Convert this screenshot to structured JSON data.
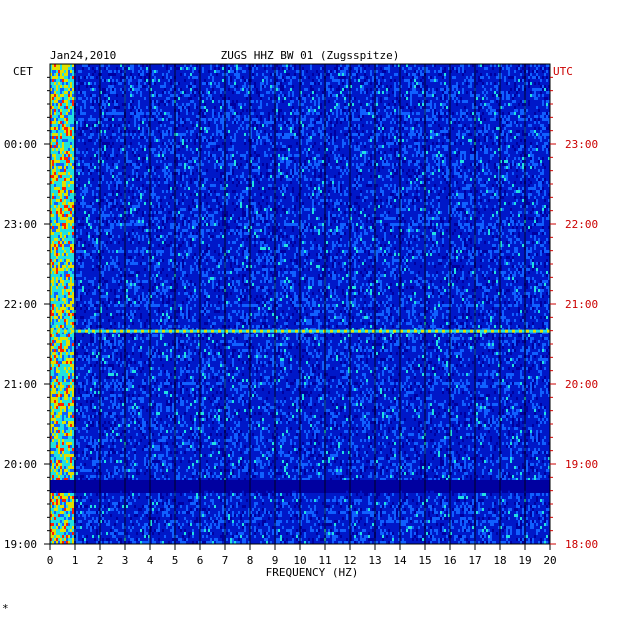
{
  "chart_data": {
    "type": "heatmap",
    "date": "Jan24,2010",
    "title": "ZUGS HHZ BW 01 (Zugsspitze)",
    "xlabel": "FREQUENCY (HZ)",
    "xlim": [
      0,
      20
    ],
    "x_ticks": [
      "0",
      "1",
      "2",
      "3",
      "4",
      "5",
      "6",
      "7",
      "8",
      "9",
      "10",
      "11",
      "12",
      "13",
      "14",
      "15",
      "16",
      "17",
      "18",
      "19",
      "20"
    ],
    "left_axis_label": "CET",
    "right_axis_label": "UTC",
    "left_ticks": [
      "00:00",
      "23:00",
      "22:00",
      "21:00",
      "20:00",
      "19:00"
    ],
    "right_ticks": [
      "23:00",
      "22:00",
      "21:00",
      "20:00",
      "19:00",
      "18:00"
    ],
    "time_range_hours_utc": [
      18,
      24
    ],
    "colors": {
      "background": "#0018c8",
      "low": "#0000a0",
      "mid": "#1060ff",
      "high": "#20e0e0",
      "peak": "#e0e000",
      "max": "#ff2000",
      "utc_text": "#cc0000"
    },
    "features": [
      {
        "type": "band_low_frequency",
        "freq_range_hz": [
          0,
          1
        ],
        "intensity": "high"
      },
      {
        "type": "horizontal_event",
        "utc": "20:40",
        "intensity": "high"
      },
      {
        "type": "quiet_gap",
        "utc_range": [
          "18:40",
          "18:48"
        ]
      }
    ],
    "footer_mark": "*"
  }
}
